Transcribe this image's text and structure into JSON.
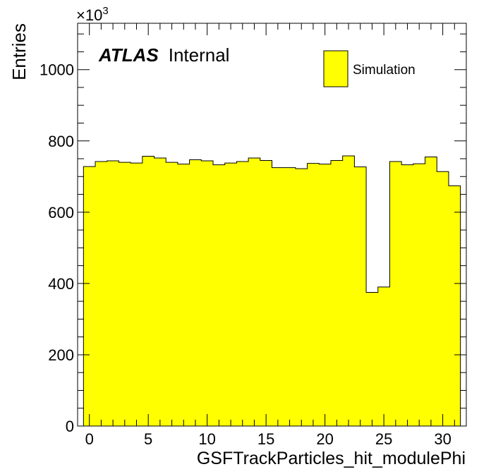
{
  "chart_data": {
    "type": "bar",
    "xlabel": "GSFTrackParticles_hit_modulePhi",
    "ylabel": "Entries",
    "y_multiplier": "×10",
    "y_multiplier_exp": "3",
    "xlim": [
      -1,
      32
    ],
    "ylim": [
      0,
      1130
    ],
    "x_ticks": [
      0,
      5,
      10,
      15,
      20,
      25,
      30
    ],
    "y_ticks": [
      0,
      200,
      400,
      600,
      800,
      1000
    ],
    "bin_edges_start": -0.5,
    "bin_width": 1,
    "values": [
      728,
      742,
      744,
      740,
      738,
      757,
      752,
      740,
      735,
      747,
      744,
      733,
      738,
      742,
      752,
      745,
      725,
      725,
      722,
      737,
      735,
      745,
      758,
      727,
      375,
      390,
      742,
      733,
      736,
      755,
      714,
      674
    ],
    "fill_color": "#ffff00",
    "edge_color": "#000000",
    "grid": false,
    "legend": {
      "position": "top-right",
      "entries": [
        {
          "label": "Simulation",
          "color": "#ffff00"
        }
      ]
    },
    "annotation": {
      "bold": "ATLAS",
      "normal": "Internal"
    }
  }
}
